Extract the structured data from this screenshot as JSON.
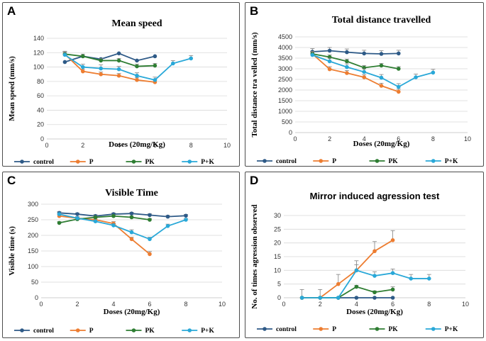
{
  "colors": {
    "control": "#2e5a87",
    "P": "#ed7d31",
    "PK": "#2e7d32",
    "P+K": "#29a8d8",
    "grid": "#d9d9d9",
    "err": "#808080"
  },
  "legend_labels": [
    "control",
    "P",
    "PK",
    "P+K"
  ],
  "chart_data": [
    {
      "panel": "A",
      "type": "line",
      "title": "Mean speed",
      "xlabel": "Doses (20mg/Kg)",
      "ylabel": "Mean speed (mm/s)",
      "xlim": [
        0,
        10
      ],
      "xticks": [
        0,
        2,
        4,
        6,
        8,
        10
      ],
      "ylim": [
        0,
        140
      ],
      "yticks": [
        0,
        20,
        40,
        60,
        80,
        100,
        120,
        140
      ],
      "series": [
        {
          "name": "control",
          "x": [
            1,
            2,
            3,
            4,
            5,
            6
          ],
          "y": [
            107,
            115,
            111,
            119,
            109,
            115
          ],
          "err": [
            0,
            0,
            0,
            0,
            0,
            0
          ]
        },
        {
          "name": "P",
          "x": [
            1,
            2,
            3,
            4,
            5,
            6
          ],
          "y": [
            118,
            94,
            90,
            88,
            82,
            79
          ],
          "err": [
            4,
            3,
            3,
            3,
            3,
            3
          ]
        },
        {
          "name": "PK",
          "x": [
            1,
            2,
            3,
            4,
            5,
            6
          ],
          "y": [
            118,
            115,
            109,
            109,
            101,
            102
          ],
          "err": [
            3,
            3,
            3,
            3,
            3,
            3
          ]
        },
        {
          "name": "P+K",
          "x": [
            1,
            2,
            3,
            4,
            5,
            6,
            7,
            8
          ],
          "y": [
            117,
            100,
            98,
            97,
            88,
            82,
            105,
            112
          ],
          "err": [
            4,
            4,
            5,
            4,
            4,
            4,
            4,
            4
          ]
        }
      ]
    },
    {
      "panel": "B",
      "type": "line",
      "title": "Total distance travelled",
      "xlabel": "Doses (20mg/Kg)",
      "ylabel": "Total distance tra velled (mm/s)",
      "xlim": [
        0,
        10
      ],
      "xticks": [
        0,
        2,
        4,
        6,
        8,
        10
      ],
      "ylim": [
        0,
        4500
      ],
      "yticks": [
        0,
        500,
        1000,
        1500,
        2000,
        2500,
        3000,
        3500,
        4000,
        4500
      ],
      "series": [
        {
          "name": "control",
          "x": [
            1,
            2,
            3,
            4,
            5,
            6
          ],
          "y": [
            3800,
            3850,
            3780,
            3720,
            3700,
            3720
          ],
          "err": [
            150,
            150,
            150,
            150,
            150,
            150
          ]
        },
        {
          "name": "P",
          "x": [
            1,
            2,
            3,
            4,
            5,
            6
          ],
          "y": [
            3700,
            2980,
            2800,
            2600,
            2200,
            1920
          ],
          "err": [
            120,
            120,
            120,
            120,
            120,
            120
          ]
        },
        {
          "name": "PK",
          "x": [
            1,
            2,
            3,
            4,
            5,
            6
          ],
          "y": [
            3700,
            3550,
            3350,
            3050,
            3150,
            3000
          ],
          "err": [
            100,
            100,
            100,
            100,
            100,
            100
          ]
        },
        {
          "name": "P+K",
          "x": [
            1,
            2,
            3,
            4,
            5,
            6,
            7,
            8
          ],
          "y": [
            3650,
            3350,
            3080,
            2850,
            2580,
            2150,
            2600,
            2820
          ],
          "err": [
            150,
            150,
            150,
            150,
            150,
            150,
            150,
            150
          ]
        }
      ]
    },
    {
      "panel": "C",
      "type": "line",
      "title": "Visible Time",
      "xlabel": "Doses (20mg/Kg)",
      "ylabel": "Visible time (s)",
      "xlim": [
        0,
        10
      ],
      "xticks": [
        0,
        2,
        4,
        6,
        8,
        10
      ],
      "ylim": [
        0,
        300
      ],
      "yticks": [
        0,
        50,
        100,
        150,
        200,
        250,
        300
      ],
      "series": [
        {
          "name": "control",
          "x": [
            1,
            2,
            3,
            4,
            5,
            6,
            7,
            8
          ],
          "y": [
            272,
            268,
            262,
            268,
            270,
            265,
            260,
            263
          ],
          "err": [
            4,
            4,
            4,
            4,
            4,
            4,
            4,
            4
          ]
        },
        {
          "name": "P",
          "x": [
            1,
            2,
            3,
            4,
            5,
            6
          ],
          "y": [
            262,
            255,
            250,
            238,
            188,
            140
          ],
          "err": [
            5,
            5,
            5,
            6,
            6,
            8
          ]
        },
        {
          "name": "PK",
          "x": [
            1,
            2,
            3,
            4,
            5,
            6
          ],
          "y": [
            240,
            252,
            258,
            262,
            258,
            250
          ],
          "err": [
            4,
            4,
            4,
            4,
            4,
            4
          ]
        },
        {
          "name": "P+K",
          "x": [
            1,
            2,
            3,
            4,
            5,
            6,
            7,
            8
          ],
          "y": [
            268,
            255,
            245,
            232,
            210,
            188,
            230,
            250
          ],
          "err": [
            4,
            4,
            4,
            6,
            8,
            6,
            6,
            4
          ]
        }
      ]
    },
    {
      "panel": "D",
      "type": "line",
      "title": "Mirror induced agression test",
      "xlabel": "Doses (20mg/Kg)",
      "ylabel": "No. of times agression observed",
      "xlim": [
        0,
        10
      ],
      "xticks": [
        0,
        2,
        4,
        6,
        8,
        10
      ],
      "ylim": [
        0,
        30
      ],
      "yticks": [
        0,
        5,
        10,
        15,
        20,
        25,
        30
      ],
      "series": [
        {
          "name": "control",
          "x": [
            1,
            2,
            3,
            4,
            5,
            6
          ],
          "y": [
            0,
            0,
            0,
            0,
            0,
            0
          ],
          "err": [
            0,
            0,
            0,
            0,
            0,
            0
          ]
        },
        {
          "name": "P",
          "x": [
            1,
            2,
            3,
            4,
            5,
            6
          ],
          "y": [
            0,
            0,
            5,
            10,
            17,
            21
          ],
          "err": [
            3,
            3,
            3.5,
            3.5,
            3.5,
            3.5
          ]
        },
        {
          "name": "PK",
          "x": [
            1,
            2,
            3,
            4,
            5,
            6
          ],
          "y": [
            0,
            0,
            0,
            4,
            2,
            3
          ],
          "err": [
            0,
            0,
            0,
            0.5,
            0.5,
            1
          ]
        },
        {
          "name": "P+K",
          "x": [
            1,
            2,
            3,
            4,
            5,
            6,
            7,
            8
          ],
          "y": [
            0,
            0,
            0,
            10,
            8,
            9,
            7,
            7
          ],
          "err": [
            0,
            0,
            0,
            2,
            1.5,
            1.5,
            1.5,
            1.5
          ]
        }
      ]
    }
  ]
}
